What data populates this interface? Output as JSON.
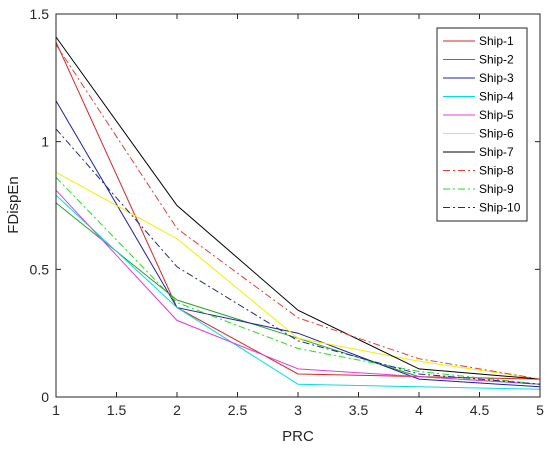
{
  "chart_data": {
    "type": "line",
    "title": "",
    "xlabel": "PRC",
    "ylabel": "FDispEn",
    "xlim": [
      1,
      5
    ],
    "ylim": [
      0,
      1.5
    ],
    "x": [
      1,
      2,
      3,
      4,
      5
    ],
    "xticks": [
      "1",
      "1.5",
      "2",
      "2.5",
      "3",
      "3.5",
      "4",
      "4.5",
      "5"
    ],
    "yticks": [
      "0",
      "0.5",
      "1",
      "1.5"
    ],
    "grid": false,
    "legend_position": "top-right",
    "series": [
      {
        "name": "Ship-1",
        "color": "#d62728",
        "dash": "solid",
        "values": [
          1.39,
          0.35,
          0.09,
          0.08,
          0.07
        ]
      },
      {
        "name": "Ship-2",
        "color": "#2ca02c",
        "dash": "solid",
        "values": [
          0.76,
          0.38,
          0.23,
          0.08,
          0.05
        ]
      },
      {
        "name": "Ship-3",
        "color": "#1f1fa8",
        "dash": "solid",
        "values": [
          1.16,
          0.35,
          0.25,
          0.07,
          0.04
        ]
      },
      {
        "name": "Ship-4",
        "color": "#00e0e0",
        "dash": "solid",
        "values": [
          0.79,
          0.35,
          0.05,
          0.04,
          0.03
        ]
      },
      {
        "name": "Ship-5",
        "color": "#e040d8",
        "dash": "solid",
        "values": [
          0.81,
          0.3,
          0.11,
          0.08,
          0.05
        ]
      },
      {
        "name": "Ship-6",
        "color": "#f0f000",
        "dash": "solid",
        "values": [
          0.88,
          0.62,
          0.23,
          0.14,
          0.07
        ]
      },
      {
        "name": "Ship-7",
        "color": "#000000",
        "dash": "solid",
        "values": [
          1.41,
          0.75,
          0.34,
          0.11,
          0.07
        ]
      },
      {
        "name": "Ship-8",
        "color": "#e0403a",
        "dash": "dashdot",
        "values": [
          1.38,
          0.66,
          0.31,
          0.15,
          0.07
        ]
      },
      {
        "name": "Ship-9",
        "color": "#22dd22",
        "dash": "dashdot",
        "values": [
          0.86,
          0.37,
          0.19,
          0.1,
          0.05
        ]
      },
      {
        "name": "Ship-10",
        "color": "#1f2a8a",
        "dash": "dashdot",
        "values": [
          1.05,
          0.51,
          0.22,
          0.09,
          0.05
        ]
      }
    ]
  }
}
